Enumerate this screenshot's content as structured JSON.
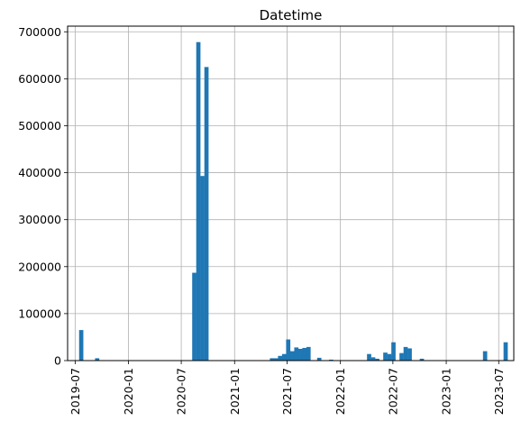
{
  "chart_data": {
    "type": "bar",
    "title": "Datetime",
    "xlabel": "",
    "ylabel": "",
    "x_scale": "date",
    "xlim": [
      "2019-06-05",
      "2023-08-22"
    ],
    "ylim": [
      0,
      712000
    ],
    "grid": true,
    "bar_color": "#1f77b4",
    "grid_color": "#b0b0b0",
    "bin_width_days": 14.6,
    "y_ticks": [
      0,
      100000,
      200000,
      300000,
      400000,
      500000,
      600000,
      700000
    ],
    "x_ticks": [
      "2019-07",
      "2020-01",
      "2020-07",
      "2021-01",
      "2021-07",
      "2022-01",
      "2022-07",
      "2023-01",
      "2023-07"
    ],
    "bars": [
      {
        "x": "2019-07-22",
        "value": 65000
      },
      {
        "x": "2019-09-15",
        "value": 5000
      },
      {
        "x": "2020-08-15",
        "value": 187000
      },
      {
        "x": "2020-08-29",
        "value": 678000
      },
      {
        "x": "2020-09-12",
        "value": 393000
      },
      {
        "x": "2020-09-26",
        "value": 625000
      },
      {
        "x": "2021-05-10",
        "value": 5000
      },
      {
        "x": "2021-05-24",
        "value": 5000
      },
      {
        "x": "2021-06-07",
        "value": 10000
      },
      {
        "x": "2021-06-21",
        "value": 14000
      },
      {
        "x": "2021-07-05",
        "value": 45000
      },
      {
        "x": "2021-07-19",
        "value": 20000
      },
      {
        "x": "2021-08-02",
        "value": 28000
      },
      {
        "x": "2021-08-16",
        "value": 25000
      },
      {
        "x": "2021-08-30",
        "value": 27000
      },
      {
        "x": "2021-09-13",
        "value": 29000
      },
      {
        "x": "2021-10-20",
        "value": 6000
      },
      {
        "x": "2021-11-30",
        "value": 2000
      },
      {
        "x": "2022-04-10",
        "value": 14000
      },
      {
        "x": "2022-04-24",
        "value": 7000
      },
      {
        "x": "2022-05-08",
        "value": 4000
      },
      {
        "x": "2022-06-05",
        "value": 17000
      },
      {
        "x": "2022-06-19",
        "value": 14000
      },
      {
        "x": "2022-07-03",
        "value": 39000
      },
      {
        "x": "2022-07-31",
        "value": 16000
      },
      {
        "x": "2022-08-14",
        "value": 29000
      },
      {
        "x": "2022-08-28",
        "value": 26000
      },
      {
        "x": "2022-10-09",
        "value": 4000
      },
      {
        "x": "2023-05-15",
        "value": 20000
      },
      {
        "x": "2023-07-25",
        "value": 39000
      }
    ]
  }
}
